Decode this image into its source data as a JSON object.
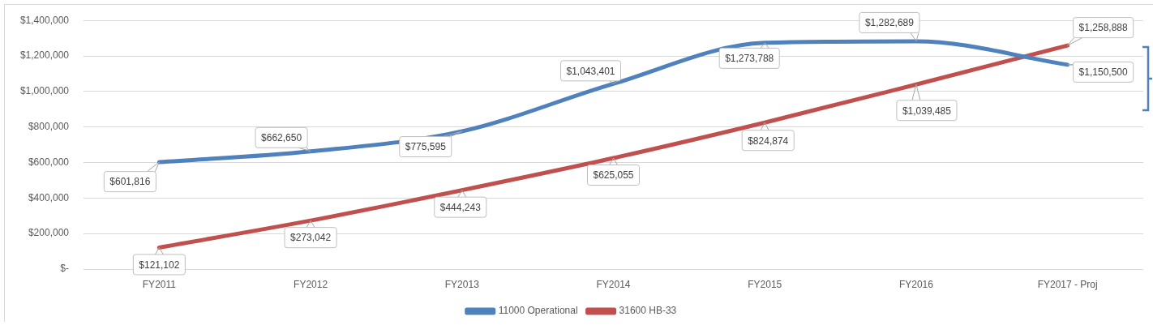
{
  "chart_data": {
    "type": "line",
    "categories": [
      "FY2011",
      "FY2012",
      "FY2013",
      "FY2014",
      "FY2015",
      "FY2016",
      "FY2017 - Proj"
    ],
    "series": [
      {
        "name": "11000 Operational",
        "color": "#4f81bd",
        "values": [
          601816,
          662650,
          775595,
          1043401,
          1273788,
          1282689,
          1150500
        ],
        "value_labels": [
          "$601,816",
          "$662,650",
          "$775,595",
          "$1,043,401",
          "$1,273,788",
          "$1,282,689",
          "$1,150,500"
        ]
      },
      {
        "name": "31600 HB-33",
        "color": "#c0504d",
        "values": [
          121102,
          273042,
          444243,
          625055,
          824874,
          1039485,
          1258888
        ],
        "value_labels": [
          "$121,102",
          "$273,042",
          "$444,243",
          "$625,055",
          "$824,874",
          "$1,039,485",
          "$1,258,888"
        ]
      }
    ],
    "ylim": [
      0,
      1400000
    ],
    "yticks": [
      {
        "value": 0,
        "label": "$-"
      },
      {
        "value": 200000,
        "label": "$200,000"
      },
      {
        "value": 400000,
        "label": "$400,000"
      },
      {
        "value": 600000,
        "label": "$600,000"
      },
      {
        "value": 800000,
        "label": "$800,000"
      },
      {
        "value": 1000000,
        "label": "$1,000,000"
      },
      {
        "value": 1200000,
        "label": "$1,200,000"
      },
      {
        "value": 1400000,
        "label": "$1,400,000"
      }
    ],
    "grid": "y",
    "legend": "bottom",
    "marker": "none",
    "line_style": "solid"
  }
}
